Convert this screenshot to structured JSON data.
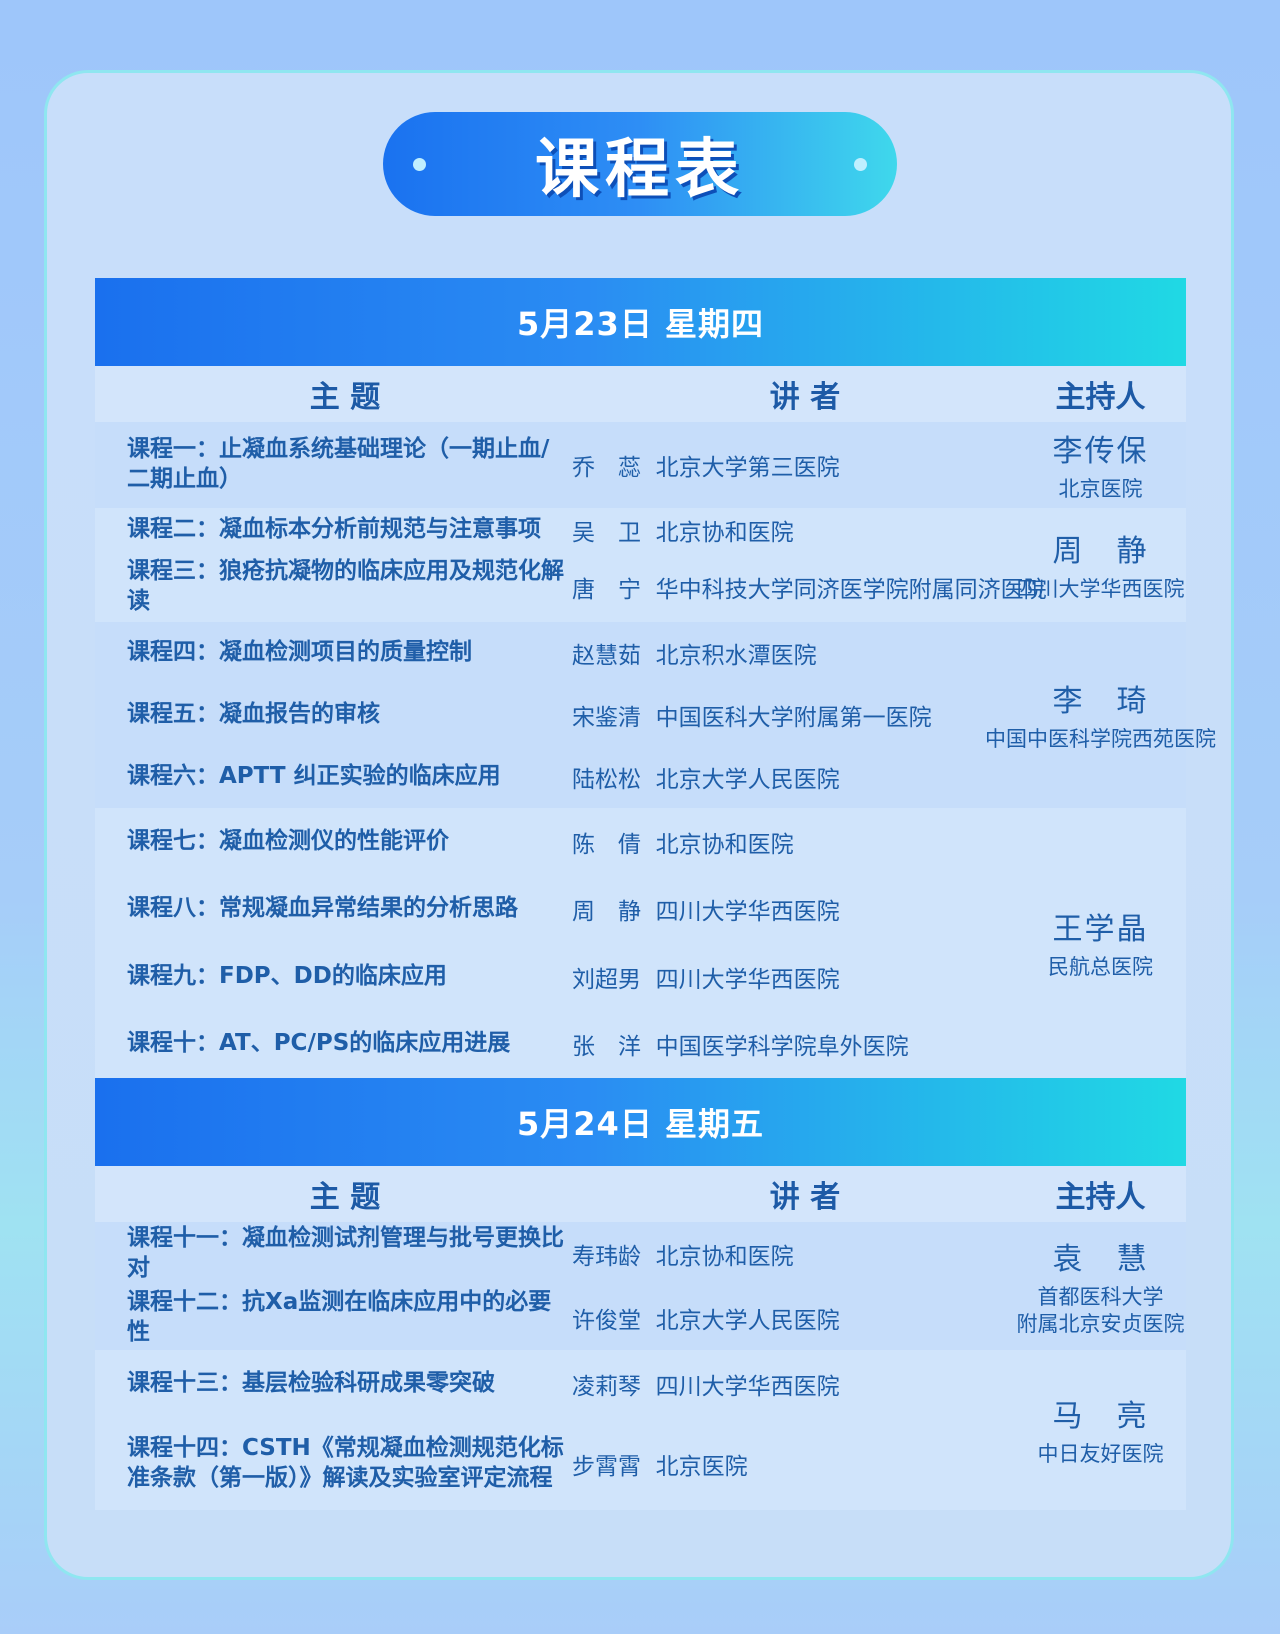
{
  "title": "课程表",
  "columns": {
    "topic": "主 题",
    "speaker": "讲 者",
    "host": "主持人"
  },
  "days": [
    {
      "date": "5月23日 星期四",
      "groups": [
        {
          "host": {
            "name": "李传保",
            "org": "北京医院"
          },
          "rows": [
            {
              "topic": "课程一：止凝血系统基础理论（一期止血/二期止血）",
              "speaker": "乔　蕊",
              "hospital": "北京大学第三医院"
            }
          ]
        },
        {
          "host": {
            "name": "周　静",
            "org": "四川大学华西医院"
          },
          "rows": [
            {
              "topic": "课程二：凝血标本分析前规范与注意事项",
              "speaker": "吴　卫",
              "hospital": "北京协和医院"
            },
            {
              "topic": "课程三：狼疮抗凝物的临床应用及规范化解读",
              "speaker": "唐　宁",
              "hospital": "华中科技大学同济医学院附属同济医院"
            }
          ]
        },
        {
          "host": {
            "name": "李　琦",
            "org": "中国中医科学院西苑医院"
          },
          "rows": [
            {
              "topic": "课程四：凝血检测项目的质量控制",
              "speaker": "赵慧茹",
              "hospital": "北京积水潭医院"
            },
            {
              "topic": "课程五：凝血报告的审核",
              "speaker": "宋鉴清",
              "hospital": "中国医科大学附属第一医院"
            },
            {
              "topic": "课程六：APTT 纠正实验的临床应用",
              "speaker": "陆松松",
              "hospital": "北京大学人民医院"
            }
          ]
        },
        {
          "host": {
            "name": "王学晶",
            "org": "民航总医院"
          },
          "rows": [
            {
              "topic": "课程七：凝血检测仪的性能评价",
              "speaker": "陈　倩",
              "hospital": "北京协和医院"
            },
            {
              "topic": "课程八：常规凝血异常结果的分析思路",
              "speaker": "周　静",
              "hospital": "四川大学华西医院"
            },
            {
              "topic": "课程九：FDP、DD的临床应用",
              "speaker": "刘超男",
              "hospital": "四川大学华西医院"
            },
            {
              "topic": "课程十：AT、PC/PS的临床应用进展",
              "speaker": "张　洋",
              "hospital": "中国医学科学院阜外医院"
            }
          ]
        }
      ]
    },
    {
      "date": "5月24日 星期五",
      "groups": [
        {
          "host": {
            "name": "袁　慧",
            "org": "首都医科大学\n附属北京安贞医院"
          },
          "rows": [
            {
              "topic": "课程十一：凝血检测试剂管理与批号更换比对",
              "speaker": "寿玮龄",
              "hospital": "北京协和医院"
            },
            {
              "topic": "课程十二：抗Xa监测在临床应用中的必要性",
              "speaker": "许俊堂",
              "hospital": "北京大学人民医院"
            }
          ]
        },
        {
          "host": {
            "name": "马　亮",
            "org": "中日友好医院"
          },
          "rows": [
            {
              "topic": "课程十三：基层检验科研成果零突破",
              "speaker": "凌莉琴",
              "hospital": "四川大学华西医院"
            },
            {
              "topic": "课程十四：CSTH《常规凝血检测规范化标准条款（第一版）》解读及实验室评定流程",
              "speaker": "步霄霄",
              "hospital": "北京医院"
            }
          ]
        }
      ]
    }
  ]
}
